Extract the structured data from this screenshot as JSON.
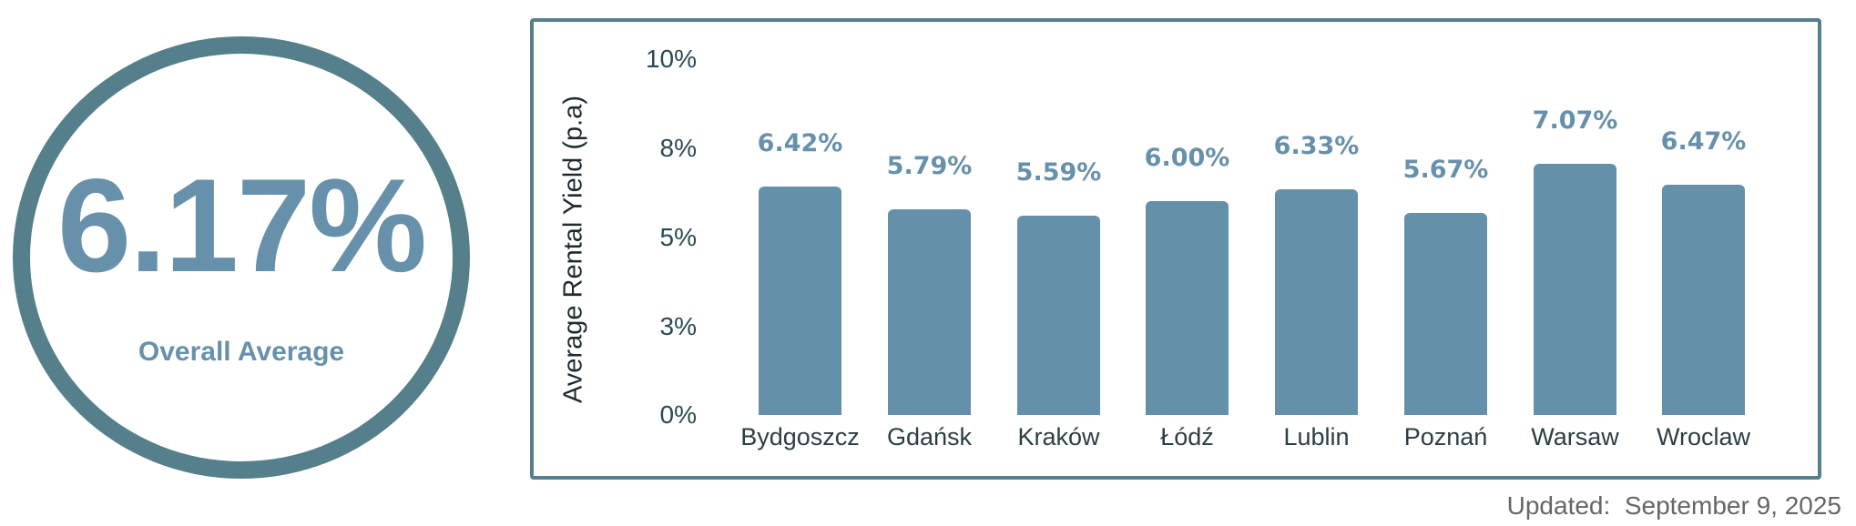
{
  "kpi": {
    "value": "6.17%",
    "label": "Overall Average"
  },
  "chart": {
    "y_axis_title": "Average Rental Yield (p.a)",
    "y_ticks": [
      "10%",
      "8%",
      "5%",
      "3%",
      "0%"
    ],
    "bars": [
      {
        "city": "Bydgoszcz",
        "value": 6.42,
        "label": "6.42%"
      },
      {
        "city": "Gdańsk",
        "value": 5.79,
        "label": "5.79%"
      },
      {
        "city": "Kraków",
        "value": 5.59,
        "label": "5.59%"
      },
      {
        "city": "Łódź",
        "value": 6.0,
        "label": "6.00%"
      },
      {
        "city": "Lublin",
        "value": 6.33,
        "label": "6.33%"
      },
      {
        "city": "Poznań",
        "value": 5.67,
        "label": "5.67%"
      },
      {
        "city": "Warsaw",
        "value": 7.07,
        "label": "7.07%"
      },
      {
        "city": "Wroclaw",
        "value": 6.47,
        "label": "6.47%"
      }
    ]
  },
  "footer": {
    "updated": "Updated:  September 9, 2025"
  },
  "colors": {
    "frame": "#557f8a",
    "bar": "#6590aa",
    "accent_text": "#6791ab",
    "axis_text": "#2c3e45",
    "muted_text": "#666666"
  },
  "chart_data": {
    "type": "bar",
    "title": "",
    "xlabel": "",
    "ylabel": "Average Rental Yield (p.a)",
    "categories": [
      "Bydgoszcz",
      "Gdańsk",
      "Kraków",
      "Łódź",
      "Lublin",
      "Poznań",
      "Warsaw",
      "Wroclaw"
    ],
    "values": [
      6.42,
      5.79,
      5.59,
      6.0,
      6.33,
      5.67,
      7.07,
      6.47
    ],
    "data_labels": [
      "6.42%",
      "5.79%",
      "5.59%",
      "6.00%",
      "6.33%",
      "5.67%",
      "7.07%",
      "6.47%"
    ],
    "y_tick_labels": [
      "0%",
      "3%",
      "5%",
      "8%",
      "10%"
    ],
    "ylim": [
      0,
      10
    ],
    "grid": false,
    "legend": null,
    "summary_kpi": {
      "label": "Overall Average",
      "value": "6.17%"
    },
    "annotation": "Updated:  September 9, 2025"
  }
}
